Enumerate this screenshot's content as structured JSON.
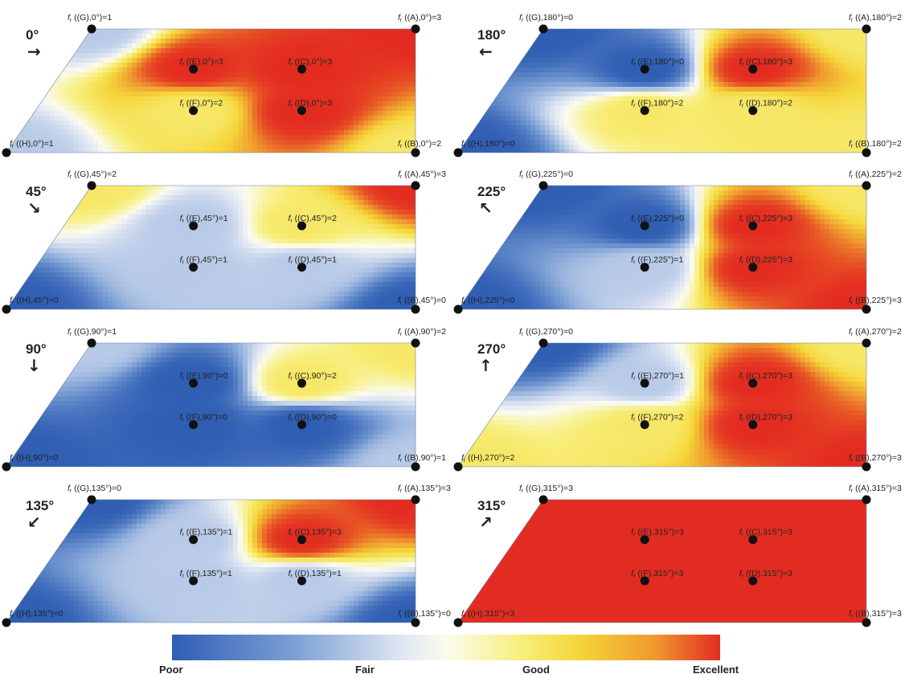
{
  "colors": {
    "poor": "#2f5eb3",
    "fair": "#fbfbef",
    "good": "#f5d63a",
    "excellent": "#e32c21"
  },
  "legend": {
    "poor": "Poor",
    "fair": "Fair",
    "good": "Good",
    "excellent": "Excellent"
  },
  "panels": [
    {
      "id": "p0",
      "title": "0°",
      "arrow": "→",
      "values": {
        "G": 1,
        "A": 3,
        "E": 3,
        "C": 3,
        "F": 2,
        "D": 3,
        "H": 1,
        "B": 2
      },
      "labels": {
        "G": "(G),0°)=1",
        "A": "(A),0°)=3",
        "E": "(E),0°)=3",
        "C": "(C),0°)=3",
        "F": "(F),0°)=2",
        "D": "(D),0°)=3",
        "H": "(H),0°)=1",
        "B": "(B),0°)=2"
      }
    },
    {
      "id": "p180",
      "title": "180°",
      "arrow": "←",
      "values": {
        "G": 0,
        "A": 2,
        "E": 0,
        "C": 3,
        "F": 2,
        "D": 2,
        "H": 0,
        "B": 2
      },
      "labels": {
        "G": "(G),180°)=0",
        "A": "(A),180°)=2",
        "E": "(E),180°)=0",
        "C": "(C),180°)=3",
        "F": "(F),180°)=2",
        "D": "(D),180°)=2",
        "H": "(H),180°)=0",
        "B": "(B),180°)=2"
      }
    },
    {
      "id": "p45",
      "title": "45°",
      "arrow": "↘",
      "values": {
        "G": 2,
        "A": 3,
        "E": 1,
        "C": 2,
        "F": 1,
        "D": 1,
        "H": 0,
        "B": 0
      },
      "labels": {
        "G": "(G),45°)=2",
        "A": "(A),45°)=3",
        "E": "(E),45°)=1",
        "C": "(C),45°)=2",
        "F": "(F),45°)=1",
        "D": "(D),45°)=1",
        "H": "(H),45°)=0",
        "B": "(B),45°)=0"
      }
    },
    {
      "id": "p225",
      "title": "225°",
      "arrow": "↖",
      "values": {
        "G": 0,
        "A": 2,
        "E": 0,
        "C": 3,
        "F": 1,
        "D": 3,
        "H": 0,
        "B": 3
      },
      "labels": {
        "G": "(G),225°)=0",
        "A": "(A),225°)=2",
        "E": "(E),225°)=0",
        "C": "(C),225°)=3",
        "F": "(F),225°)=1",
        "D": "(D),225°)=3",
        "H": "(H),225°)=0",
        "B": "(B),225°)=3"
      }
    },
    {
      "id": "p90",
      "title": "90°",
      "arrow": "↓",
      "values": {
        "G": 1,
        "A": 2,
        "E": 0,
        "C": 2,
        "F": 0,
        "D": 0,
        "H": 0,
        "B": 1
      },
      "labels": {
        "G": "(G),90°)=1",
        "A": "(A),90°)=2",
        "E": "(E),90°)=0",
        "C": "(C),90°)=2",
        "F": "(F),90°)=0",
        "D": "(D),90°)=0",
        "H": "(H),90°)=0",
        "B": "(B),90°)=1"
      }
    },
    {
      "id": "p270",
      "title": "270°",
      "arrow": "↑",
      "values": {
        "G": 0,
        "A": 2,
        "E": 1,
        "C": 3,
        "F": 2,
        "D": 3,
        "H": 2,
        "B": 3
      },
      "labels": {
        "G": "(G),270°)=0",
        "A": "(A),270°)=2",
        "E": "(E),270°)=1",
        "C": "(C),270°)=3",
        "F": "(F),270°)=2",
        "D": "(D),270°)=3",
        "H": "(H),270°)=2",
        "B": "(B),270°)=3"
      }
    },
    {
      "id": "p135",
      "title": "135°",
      "arrow": "↙",
      "values": {
        "G": 0,
        "A": 3,
        "E": 1,
        "C": 3,
        "F": 1,
        "D": 1,
        "H": 0,
        "B": 0
      },
      "labels": {
        "G": "(G),135°)=0",
        "A": "(A),135°)=3",
        "E": "(E),135°)=1",
        "C": "(C),135°)=3",
        "F": "(F),135°)=1",
        "D": "(D),135°)=1",
        "H": "(H),135°)=0",
        "B": "(B),135°)=0"
      }
    },
    {
      "id": "p315",
      "title": "315°",
      "arrow": "↗",
      "values": {
        "G": 3,
        "A": 3,
        "E": 3,
        "C": 3,
        "F": 3,
        "D": 3,
        "H": 3,
        "B": 3
      },
      "labels": {
        "G": "(G),315°)=3",
        "A": "(A),315°)=3",
        "E": "(E),315°)=3",
        "C": "(C),315°)=3",
        "F": "(F),315°)=3",
        "D": "(D),315°)=3",
        "H": "(H),315°)=3",
        "B": "(B),315°)=3"
      }
    }
  ]
}
